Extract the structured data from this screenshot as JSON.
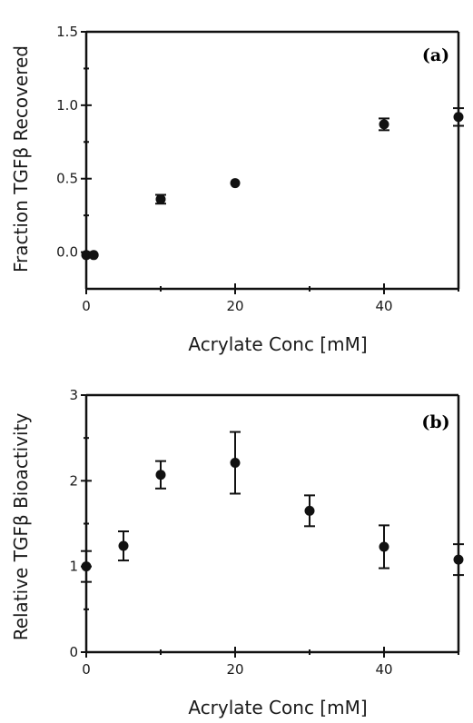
{
  "colors": {
    "ink": "#111111",
    "background": "#ffffff"
  },
  "chart_data": [
    {
      "type": "scatter",
      "panel_label": "(a)",
      "xlabel": "Acrylate Conc [mM]",
      "ylabel": "Fraction TGFβ Recovered",
      "xlim": [
        0,
        50
      ],
      "ylim": [
        -0.25,
        1.5
      ],
      "xticks": [
        0,
        20,
        40
      ],
      "xticks_minor": [
        10,
        30,
        50
      ],
      "yticks": [
        0.0,
        0.5,
        1.0,
        1.5
      ],
      "yticks_minor": [
        0.25,
        0.75,
        1.25
      ],
      "ytick_labels": [
        "0.0",
        "0.5",
        "1.0",
        "1.5"
      ],
      "grid": false,
      "points": [
        {
          "x": 0,
          "y": -0.02,
          "err": 0.0
        },
        {
          "x": 1,
          "y": -0.02,
          "err": 0.0
        },
        {
          "x": 10,
          "y": 0.36,
          "err": 0.03
        },
        {
          "x": 20,
          "y": 0.47,
          "err": 0.0
        },
        {
          "x": 40,
          "y": 0.87,
          "err": 0.04
        },
        {
          "x": 50,
          "y": 0.92,
          "err": 0.06
        }
      ]
    },
    {
      "type": "scatter",
      "panel_label": "(b)",
      "xlabel": "Acrylate Conc [mM]",
      "ylabel": "Relative TGFβ Bioactivity",
      "xlim": [
        0,
        50
      ],
      "ylim": [
        0,
        3
      ],
      "xticks": [
        0,
        20,
        40
      ],
      "xticks_minor": [
        10,
        30,
        50
      ],
      "yticks": [
        0,
        1,
        2,
        3
      ],
      "yticks_minor": [
        0.5,
        1.5,
        2.5
      ],
      "ytick_labels": [
        "0",
        "1",
        "2",
        "3"
      ],
      "grid": false,
      "points": [
        {
          "x": 0,
          "y": 1.0,
          "err": 0.18
        },
        {
          "x": 5,
          "y": 1.24,
          "err": 0.17
        },
        {
          "x": 10,
          "y": 2.07,
          "err": 0.16
        },
        {
          "x": 20,
          "y": 2.21,
          "err": 0.36
        },
        {
          "x": 30,
          "y": 1.65,
          "err": 0.18
        },
        {
          "x": 40,
          "y": 1.23,
          "err": 0.25
        },
        {
          "x": 50,
          "y": 1.08,
          "err": 0.18
        }
      ]
    }
  ]
}
